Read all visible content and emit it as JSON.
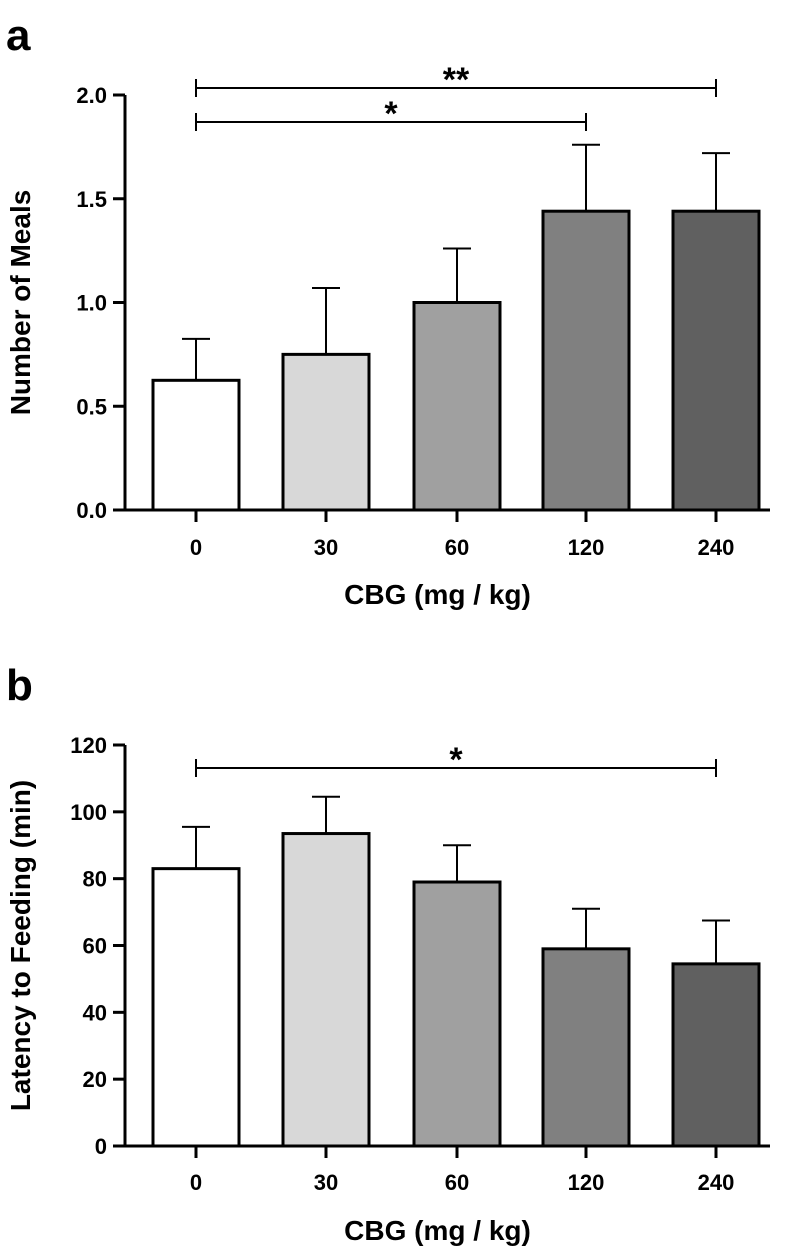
{
  "chart_data": [
    {
      "panel": "a",
      "type": "bar",
      "categories": [
        "0",
        "30",
        "60",
        "120",
        "240"
      ],
      "values": [
        0.625,
        0.75,
        1.0,
        1.44,
        1.44
      ],
      "errors": [
        0.2,
        0.32,
        0.26,
        0.32,
        0.28
      ],
      "colors": [
        "#ffffff",
        "#d8d8d8",
        "#a0a0a0",
        "#808080",
        "#606060"
      ],
      "xlabel": "CBG (mg / kg)",
      "ylabel": "Number of Meals",
      "ylim": [
        0,
        2.0
      ],
      "yticks": [
        "0.0",
        "0.5",
        "1.0",
        "1.5",
        "2.0"
      ],
      "significance": [
        {
          "from": "0",
          "to": "240",
          "label": "**"
        },
        {
          "from": "0",
          "to": "120",
          "label": "*"
        }
      ]
    },
    {
      "panel": "b",
      "type": "bar",
      "categories": [
        "0",
        "30",
        "60",
        "120",
        "240"
      ],
      "values": [
        83,
        93.5,
        79,
        59,
        54.5
      ],
      "errors": [
        12.5,
        11,
        11,
        12,
        13
      ],
      "colors": [
        "#ffffff",
        "#d8d8d8",
        "#a0a0a0",
        "#808080",
        "#606060"
      ],
      "xlabel": "CBG (mg / kg)",
      "ylabel": "Latency to Feeding (min)",
      "ylim": [
        0,
        120
      ],
      "yticks": [
        "0",
        "20",
        "40",
        "60",
        "80",
        "100",
        "120"
      ],
      "significance": [
        {
          "from": "0",
          "to": "240",
          "label": "*"
        }
      ]
    }
  ]
}
